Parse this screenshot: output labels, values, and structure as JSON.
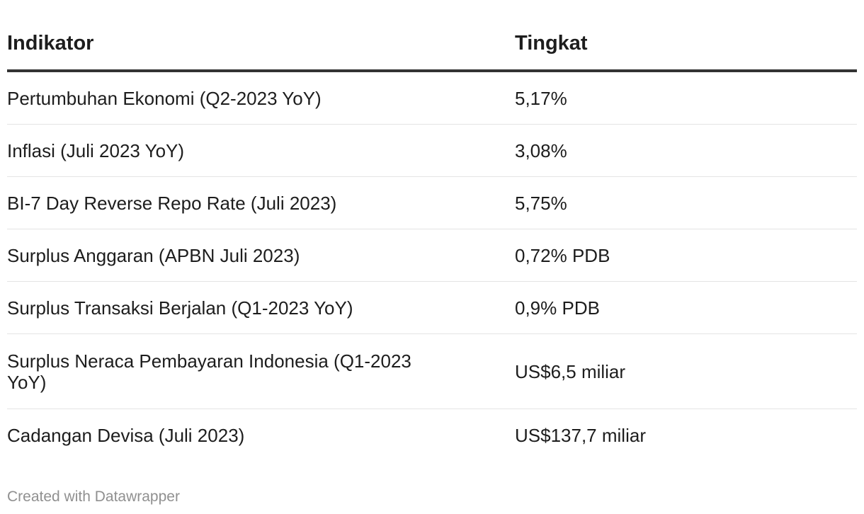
{
  "chart_data": {
    "type": "table",
    "columns": [
      "Indikator",
      "Tingkat"
    ],
    "rows": [
      {
        "indikator": "Pertumbuhan Ekonomi (Q2-2023 YoY)",
        "tingkat": "5,17%"
      },
      {
        "indikator": "Inflasi (Juli 2023 YoY)",
        "tingkat": "3,08%"
      },
      {
        "indikator": "BI-7 Day Reverse Repo Rate (Juli 2023)",
        "tingkat": "5,75%"
      },
      {
        "indikator": "Surplus Anggaran (APBN Juli 2023)",
        "tingkat": "0,72% PDB"
      },
      {
        "indikator": "Surplus Transaksi Berjalan (Q1-2023 YoY)",
        "tingkat": "0,9% PDB"
      },
      {
        "indikator": "Surplus Neraca Pembayaran Indonesia (Q1-2023 YoY)",
        "tingkat": "US$6,5 miliar"
      },
      {
        "indikator": "Cadangan Devisa (Juli 2023)",
        "tingkat": "US$137,7 miliar"
      }
    ]
  },
  "footer": {
    "credit": "Created with Datawrapper"
  }
}
